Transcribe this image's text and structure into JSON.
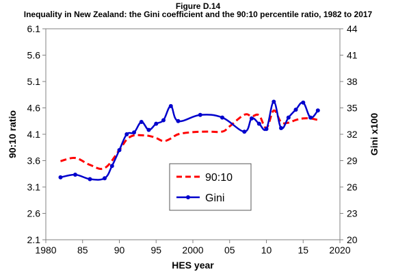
{
  "figure_label": "Figure D.14",
  "chart_data": {
    "type": "line",
    "title": "Inequality in New Zealand: the Gini coefficient and the 90:10 percentile ratio, 1982 to 2017",
    "xlabel": "HES year",
    "ylabel": "90:10 ratio",
    "y2label": "Gini x100",
    "xlim": [
      1980,
      2020
    ],
    "ylim": [
      2.1,
      6.1
    ],
    "y2lim": [
      20,
      44
    ],
    "x_ticks": [
      "1980",
      "85",
      "90",
      "95",
      "2000",
      "05",
      "10",
      "15",
      "2020"
    ],
    "x_tick_values": [
      1980,
      1985,
      1990,
      1995,
      2000,
      2005,
      2010,
      2015,
      2020
    ],
    "y_ticks": [
      "2.1",
      "2.6",
      "3.1",
      "3.6",
      "4.1",
      "4.6",
      "5.1",
      "5.6",
      "6.1"
    ],
    "y_tick_values": [
      2.1,
      2.6,
      3.1,
      3.6,
      4.1,
      4.6,
      5.1,
      5.6,
      6.1
    ],
    "y2_ticks": [
      "20",
      "23",
      "26",
      "29",
      "32",
      "35",
      "38",
      "41",
      "44"
    ],
    "y2_tick_values": [
      20,
      23,
      26,
      29,
      32,
      35,
      38,
      41,
      44
    ],
    "legend": {
      "position": "center",
      "entries": [
        "90:10",
        "Gini"
      ]
    },
    "colors": {
      "ratio": "#ff0000",
      "gini": "#0000cc"
    },
    "series": [
      {
        "name": "90:10",
        "axis": "left",
        "style": "dashed",
        "x": [
          1982,
          1984,
          1986,
          1988,
          1990,
          1991,
          1992,
          1993,
          1994,
          1995,
          1996,
          1997,
          1998,
          2000,
          2002,
          2004,
          2005,
          2007,
          2008,
          2009,
          2010,
          2011,
          2012,
          2013,
          2014,
          2015,
          2016,
          2017
        ],
        "values": [
          3.59,
          3.65,
          3.52,
          3.46,
          3.8,
          4.0,
          4.08,
          4.08,
          4.07,
          4.03,
          3.97,
          4.02,
          4.1,
          4.14,
          4.15,
          4.15,
          4.25,
          4.47,
          4.44,
          4.46,
          4.22,
          4.55,
          4.33,
          4.32,
          4.37,
          4.4,
          4.4,
          4.37
        ]
      },
      {
        "name": "Gini",
        "axis": "right",
        "style": "solid-markers",
        "x": [
          1982,
          1984,
          1986,
          1988,
          1989,
          1990,
          1991,
          1992,
          1993,
          1994,
          1995,
          1996,
          1997,
          1998,
          2001,
          2004,
          2007,
          2008,
          2009,
          2010,
          2011,
          2012,
          2013,
          2014,
          2015,
          2016,
          2017
        ],
        "values": [
          27.1,
          27.4,
          26.9,
          27.0,
          28.4,
          30.2,
          32.0,
          32.2,
          33.4,
          32.5,
          33.2,
          33.6,
          35.2,
          33.5,
          34.2,
          33.9,
          32.3,
          33.8,
          33.2,
          32.6,
          35.7,
          32.7,
          33.9,
          34.8,
          35.6,
          33.9,
          34.7
        ]
      }
    ]
  }
}
